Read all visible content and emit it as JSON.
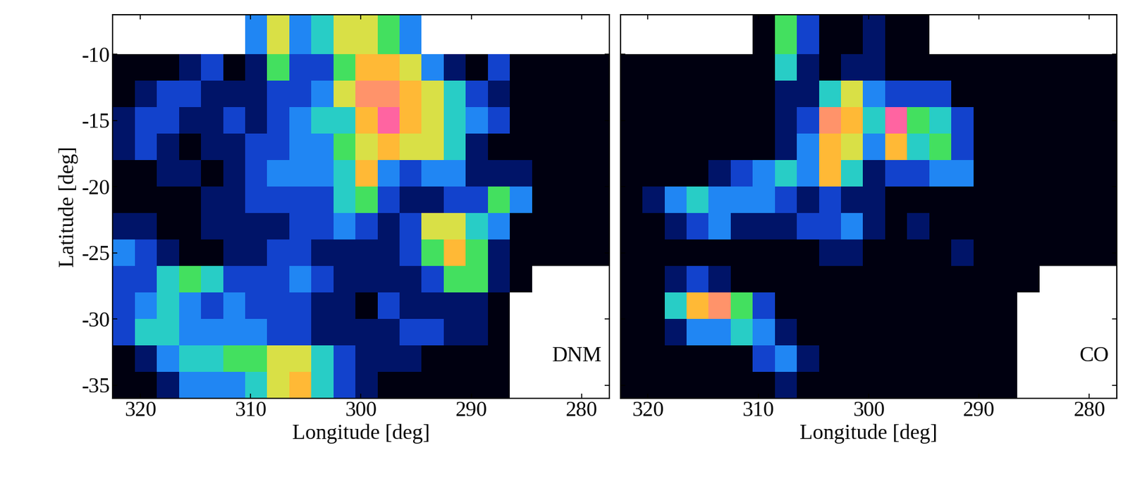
{
  "chart_data": [
    {
      "type": "heatmap",
      "annotation": "DNM",
      "xlabel": "Longitude [deg]",
      "ylabel": "Latitude [deg]",
      "xlim": [
        322.5,
        277.5
      ],
      "ylim": [
        -36,
        -7
      ],
      "xticks": [
        320,
        310,
        300,
        290,
        280
      ],
      "yticks": [
        -35,
        -30,
        -25,
        -20,
        -15,
        -10
      ],
      "x_edges": [
        322.5,
        320.5,
        318.5,
        316.5,
        314.5,
        312.5,
        310.5,
        308.5,
        306.5,
        304.5,
        302.5,
        300.5,
        298.5,
        296.5,
        294.5,
        292.5,
        290.5,
        288.5,
        286.5,
        284.5,
        282.5,
        280.5,
        278.5,
        277.5
      ],
      "y_edges": [
        -36,
        -34,
        -32,
        -30,
        -28,
        -26,
        -24,
        -22,
        -20,
        -18,
        -16,
        -14,
        -12,
        -10,
        -7
      ],
      "clim": [
        0,
        10
      ],
      "cells": [
        [
          0,
          0,
          1,
          3,
          3,
          3,
          4,
          6,
          7,
          4,
          2,
          1,
          0,
          0,
          0,
          0,
          0,
          0,
          null,
          null,
          null,
          null,
          null
        ],
        [
          0,
          1,
          3,
          4,
          4,
          5,
          5,
          6,
          6,
          4,
          2,
          1,
          1,
          1,
          0,
          0,
          0,
          0,
          null,
          null,
          null,
          null,
          null
        ],
        [
          2,
          4,
          4,
          3,
          3,
          3,
          3,
          2,
          2,
          1,
          1,
          1,
          1,
          2,
          2,
          1,
          1,
          0,
          null,
          null,
          null,
          null,
          null
        ],
        [
          2,
          3,
          4,
          3,
          2,
          3,
          2,
          2,
          2,
          1,
          1,
          0,
          2,
          1,
          1,
          1,
          1,
          0,
          null,
          null,
          null,
          null,
          null
        ],
        [
          2,
          2,
          4,
          5,
          4,
          2,
          2,
          2,
          3,
          2,
          1,
          1,
          1,
          1,
          2,
          5,
          5,
          1,
          0,
          null,
          null,
          null,
          null
        ],
        [
          3,
          2,
          1,
          0,
          0,
          1,
          1,
          2,
          2,
          1,
          1,
          1,
          1,
          2,
          5,
          7,
          5,
          1,
          0,
          0,
          0,
          0,
          0
        ],
        [
          1,
          1,
          0,
          0,
          1,
          1,
          1,
          1,
          2,
          2,
          3,
          2,
          1,
          2,
          6,
          6,
          4,
          3,
          0,
          0,
          0,
          0,
          0
        ],
        [
          0,
          0,
          0,
          0,
          1,
          1,
          2,
          2,
          2,
          2,
          4,
          5,
          2,
          1,
          1,
          2,
          2,
          5,
          3,
          0,
          0,
          0,
          0
        ],
        [
          0,
          0,
          1,
          1,
          0,
          1,
          2,
          3,
          3,
          3,
          4,
          7,
          3,
          2,
          3,
          3,
          1,
          1,
          1,
          0,
          0,
          0,
          0
        ],
        [
          1,
          2,
          1,
          0,
          1,
          1,
          2,
          2,
          3,
          3,
          5,
          6,
          7,
          6,
          6,
          4,
          1,
          0,
          0,
          0,
          0,
          0,
          0
        ],
        [
          1,
          2,
          2,
          1,
          1,
          2,
          1,
          2,
          3,
          4,
          4,
          7,
          9,
          7,
          6,
          4,
          3,
          2,
          0,
          0,
          0,
          0,
          0
        ],
        [
          0,
          1,
          2,
          2,
          1,
          1,
          1,
          2,
          2,
          3,
          6,
          8,
          8,
          7,
          6,
          4,
          2,
          1,
          0,
          0,
          0,
          0,
          0
        ],
        [
          0,
          0,
          0,
          1,
          2,
          0,
          1,
          5,
          2,
          2,
          5,
          7,
          7,
          6,
          3,
          1,
          0,
          2,
          0,
          0,
          0,
          0,
          0
        ],
        [
          null,
          null,
          null,
          null,
          null,
          null,
          3,
          6,
          3,
          4,
          6,
          6,
          5,
          3,
          null,
          null,
          null,
          null,
          null,
          null,
          null,
          null,
          null
        ]
      ]
    },
    {
      "type": "heatmap",
      "annotation": "CO",
      "xlabel": "Longitude [deg]",
      "tick_labels": "x",
      "xlim": [
        322.5,
        277.5
      ],
      "ylim": [
        -36,
        -7
      ],
      "xticks": [
        320,
        310,
        300,
        290,
        280
      ],
      "yticks": [
        -35,
        -30,
        -25,
        -20,
        -15,
        -10
      ],
      "x_edges": [
        322.5,
        320.5,
        318.5,
        316.5,
        314.5,
        312.5,
        310.5,
        308.5,
        306.5,
        304.5,
        302.5,
        300.5,
        298.5,
        296.5,
        294.5,
        292.5,
        290.5,
        288.5,
        286.5,
        284.5,
        282.5,
        280.5,
        278.5,
        277.5
      ],
      "y_edges": [
        -36,
        -34,
        -32,
        -30,
        -28,
        -26,
        -24,
        -22,
        -20,
        -18,
        -16,
        -14,
        -12,
        -10,
        -7
      ],
      "clim": [
        0,
        10
      ],
      "cells": [
        [
          0,
          0,
          0,
          0,
          0,
          0,
          0,
          1,
          0,
          0,
          0,
          0,
          0,
          0,
          0,
          0,
          0,
          0,
          null,
          null,
          null,
          null,
          null
        ],
        [
          0,
          0,
          0,
          0,
          0,
          0,
          2,
          3,
          1,
          0,
          0,
          0,
          0,
          0,
          0,
          0,
          0,
          0,
          null,
          null,
          null,
          null,
          null
        ],
        [
          0,
          0,
          1,
          3,
          3,
          4,
          3,
          1,
          0,
          0,
          0,
          0,
          0,
          0,
          0,
          0,
          0,
          0,
          null,
          null,
          null,
          null,
          null
        ],
        [
          0,
          0,
          4,
          7,
          8,
          5,
          2,
          0,
          0,
          0,
          0,
          0,
          0,
          0,
          0,
          0,
          0,
          0,
          null,
          null,
          null,
          null,
          null
        ],
        [
          0,
          0,
          1,
          2,
          1,
          0,
          0,
          0,
          0,
          0,
          0,
          0,
          0,
          0,
          0,
          0,
          0,
          0,
          0,
          null,
          null,
          null,
          null
        ],
        [
          0,
          0,
          0,
          0,
          0,
          0,
          0,
          0,
          0,
          1,
          1,
          0,
          0,
          0,
          0,
          1,
          0,
          0,
          0,
          0,
          0,
          0,
          0
        ],
        [
          0,
          0,
          1,
          2,
          3,
          1,
          1,
          1,
          2,
          2,
          3,
          1,
          0,
          1,
          0,
          0,
          0,
          0,
          0,
          0,
          0,
          0,
          0
        ],
        [
          0,
          1,
          3,
          4,
          3,
          3,
          3,
          2,
          1,
          2,
          1,
          1,
          0,
          0,
          0,
          0,
          0,
          0,
          0,
          0,
          0,
          0,
          0
        ],
        [
          0,
          0,
          0,
          0,
          1,
          2,
          3,
          4,
          3,
          7,
          4,
          1,
          2,
          2,
          3,
          3,
          0,
          0,
          0,
          0,
          0,
          0,
          0
        ],
        [
          0,
          0,
          0,
          0,
          0,
          0,
          0,
          1,
          3,
          7,
          6,
          3,
          7,
          4,
          5,
          2,
          0,
          0,
          0,
          0,
          0,
          0,
          0
        ],
        [
          0,
          0,
          0,
          0,
          0,
          0,
          0,
          1,
          2,
          8,
          7,
          4,
          9,
          5,
          4,
          2,
          0,
          0,
          0,
          0,
          0,
          0,
          0
        ],
        [
          0,
          0,
          0,
          0,
          0,
          0,
          0,
          1,
          1,
          4,
          6,
          3,
          2,
          2,
          2,
          0,
          0,
          0,
          0,
          0,
          0,
          0,
          0
        ],
        [
          0,
          0,
          0,
          0,
          0,
          0,
          0,
          4,
          1,
          0,
          1,
          1,
          0,
          0,
          0,
          0,
          0,
          0,
          0,
          0,
          0,
          0,
          0
        ],
        [
          null,
          null,
          null,
          null,
          null,
          null,
          0,
          5,
          2,
          0,
          0,
          1,
          0,
          0,
          null,
          null,
          null,
          null,
          null,
          null,
          null,
          null,
          null
        ]
      ]
    }
  ]
}
